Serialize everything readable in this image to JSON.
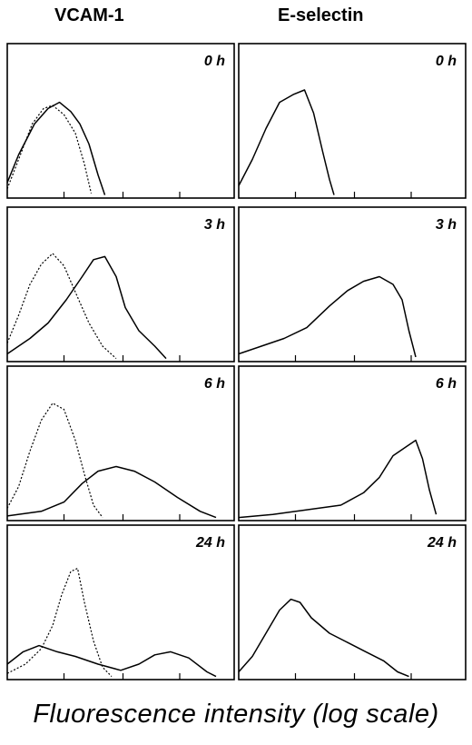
{
  "column_titles": [
    "VCAM-1",
    "E-selectin"
  ],
  "x_axis_label": "Fluorescence intensity (log scale)",
  "chart_data": {
    "type": "line",
    "xlabel": "Fluorescence intensity (log scale)",
    "ylabel": "",
    "x_unit": "log fluorescence",
    "grid": false,
    "panels": [
      {
        "column": "VCAM-1",
        "time": "0 h",
        "series": [
          {
            "style": "solid",
            "points": [
              [
                0.0,
                0.1
              ],
              [
                0.05,
                0.28
              ],
              [
                0.12,
                0.48
              ],
              [
                0.18,
                0.58
              ],
              [
                0.23,
                0.62
              ],
              [
                0.28,
                0.56
              ],
              [
                0.32,
                0.48
              ],
              [
                0.36,
                0.35
              ],
              [
                0.4,
                0.15
              ],
              [
                0.43,
                0.02
              ]
            ]
          },
          {
            "style": "dotted",
            "points": [
              [
                0.0,
                0.06
              ],
              [
                0.05,
                0.25
              ],
              [
                0.11,
                0.48
              ],
              [
                0.16,
                0.58
              ],
              [
                0.2,
                0.6
              ],
              [
                0.25,
                0.54
              ],
              [
                0.3,
                0.42
              ],
              [
                0.34,
                0.22
              ],
              [
                0.37,
                0.03
              ]
            ]
          }
        ]
      },
      {
        "column": "E-selectin",
        "time": "0 h",
        "series": [
          {
            "style": "solid",
            "points": [
              [
                0.0,
                0.08
              ],
              [
                0.06,
                0.25
              ],
              [
                0.12,
                0.45
              ],
              [
                0.18,
                0.62
              ],
              [
                0.24,
                0.67
              ],
              [
                0.29,
                0.7
              ],
              [
                0.33,
                0.55
              ],
              [
                0.37,
                0.3
              ],
              [
                0.4,
                0.12
              ],
              [
                0.42,
                0.02
              ]
            ]
          }
        ]
      },
      {
        "column": "VCAM-1",
        "time": "3 h",
        "series": [
          {
            "style": "solid",
            "points": [
              [
                0.0,
                0.05
              ],
              [
                0.1,
                0.15
              ],
              [
                0.18,
                0.25
              ],
              [
                0.26,
                0.4
              ],
              [
                0.33,
                0.55
              ],
              [
                0.38,
                0.66
              ],
              [
                0.43,
                0.68
              ],
              [
                0.48,
                0.55
              ],
              [
                0.52,
                0.35
              ],
              [
                0.58,
                0.2
              ],
              [
                0.65,
                0.1
              ],
              [
                0.7,
                0.02
              ]
            ]
          },
          {
            "style": "dotted",
            "points": [
              [
                0.0,
                0.12
              ],
              [
                0.05,
                0.3
              ],
              [
                0.1,
                0.5
              ],
              [
                0.15,
                0.63
              ],
              [
                0.2,
                0.7
              ],
              [
                0.25,
                0.62
              ],
              [
                0.3,
                0.45
              ],
              [
                0.36,
                0.25
              ],
              [
                0.42,
                0.1
              ],
              [
                0.48,
                0.02
              ]
            ]
          }
        ]
      },
      {
        "column": "E-selectin",
        "time": "3 h",
        "series": [
          {
            "style": "solid",
            "points": [
              [
                0.0,
                0.05
              ],
              [
                0.1,
                0.1
              ],
              [
                0.2,
                0.15
              ],
              [
                0.3,
                0.22
              ],
              [
                0.4,
                0.36
              ],
              [
                0.48,
                0.46
              ],
              [
                0.55,
                0.52
              ],
              [
                0.62,
                0.55
              ],
              [
                0.68,
                0.5
              ],
              [
                0.72,
                0.4
              ],
              [
                0.75,
                0.2
              ],
              [
                0.78,
                0.03
              ]
            ]
          }
        ]
      },
      {
        "column": "VCAM-1",
        "time": "6 h",
        "series": [
          {
            "style": "solid",
            "points": [
              [
                0.0,
                0.03
              ],
              [
                0.15,
                0.06
              ],
              [
                0.25,
                0.12
              ],
              [
                0.33,
                0.24
              ],
              [
                0.4,
                0.32
              ],
              [
                0.48,
                0.35
              ],
              [
                0.56,
                0.32
              ],
              [
                0.65,
                0.25
              ],
              [
                0.75,
                0.15
              ],
              [
                0.85,
                0.06
              ],
              [
                0.92,
                0.02
              ]
            ]
          },
          {
            "style": "dotted",
            "points": [
              [
                0.0,
                0.08
              ],
              [
                0.05,
                0.22
              ],
              [
                0.1,
                0.45
              ],
              [
                0.15,
                0.65
              ],
              [
                0.2,
                0.76
              ],
              [
                0.25,
                0.72
              ],
              [
                0.3,
                0.52
              ],
              [
                0.34,
                0.3
              ],
              [
                0.38,
                0.1
              ],
              [
                0.42,
                0.02
              ]
            ]
          }
        ]
      },
      {
        "column": "E-selectin",
        "time": "6 h",
        "series": [
          {
            "style": "solid",
            "points": [
              [
                0.0,
                0.02
              ],
              [
                0.15,
                0.04
              ],
              [
                0.3,
                0.07
              ],
              [
                0.45,
                0.1
              ],
              [
                0.55,
                0.18
              ],
              [
                0.62,
                0.28
              ],
              [
                0.68,
                0.42
              ],
              [
                0.74,
                0.48
              ],
              [
                0.78,
                0.52
              ],
              [
                0.81,
                0.4
              ],
              [
                0.84,
                0.2
              ],
              [
                0.87,
                0.04
              ]
            ]
          }
        ]
      },
      {
        "column": "VCAM-1",
        "time": "24 h",
        "series": [
          {
            "style": "solid",
            "points": [
              [
                0.0,
                0.1
              ],
              [
                0.07,
                0.18
              ],
              [
                0.14,
                0.22
              ],
              [
                0.22,
                0.18
              ],
              [
                0.3,
                0.15
              ],
              [
                0.4,
                0.1
              ],
              [
                0.5,
                0.06
              ],
              [
                0.58,
                0.1
              ],
              [
                0.65,
                0.16
              ],
              [
                0.72,
                0.18
              ],
              [
                0.8,
                0.14
              ],
              [
                0.88,
                0.05
              ],
              [
                0.92,
                0.02
              ]
            ]
          },
          {
            "style": "dotted",
            "points": [
              [
                0.0,
                0.04
              ],
              [
                0.08,
                0.1
              ],
              [
                0.15,
                0.2
              ],
              [
                0.2,
                0.35
              ],
              [
                0.24,
                0.55
              ],
              [
                0.28,
                0.7
              ],
              [
                0.31,
                0.72
              ],
              [
                0.34,
                0.5
              ],
              [
                0.38,
                0.25
              ],
              [
                0.42,
                0.08
              ],
              [
                0.46,
                0.02
              ]
            ]
          }
        ]
      },
      {
        "column": "E-selectin",
        "time": "24 h",
        "series": [
          {
            "style": "solid",
            "points": [
              [
                0.0,
                0.05
              ],
              [
                0.06,
                0.15
              ],
              [
                0.12,
                0.3
              ],
              [
                0.18,
                0.45
              ],
              [
                0.23,
                0.52
              ],
              [
                0.27,
                0.5
              ],
              [
                0.32,
                0.4
              ],
              [
                0.4,
                0.3
              ],
              [
                0.48,
                0.24
              ],
              [
                0.56,
                0.18
              ],
              [
                0.64,
                0.12
              ],
              [
                0.7,
                0.05
              ],
              [
                0.75,
                0.02
              ]
            ]
          }
        ]
      }
    ]
  }
}
